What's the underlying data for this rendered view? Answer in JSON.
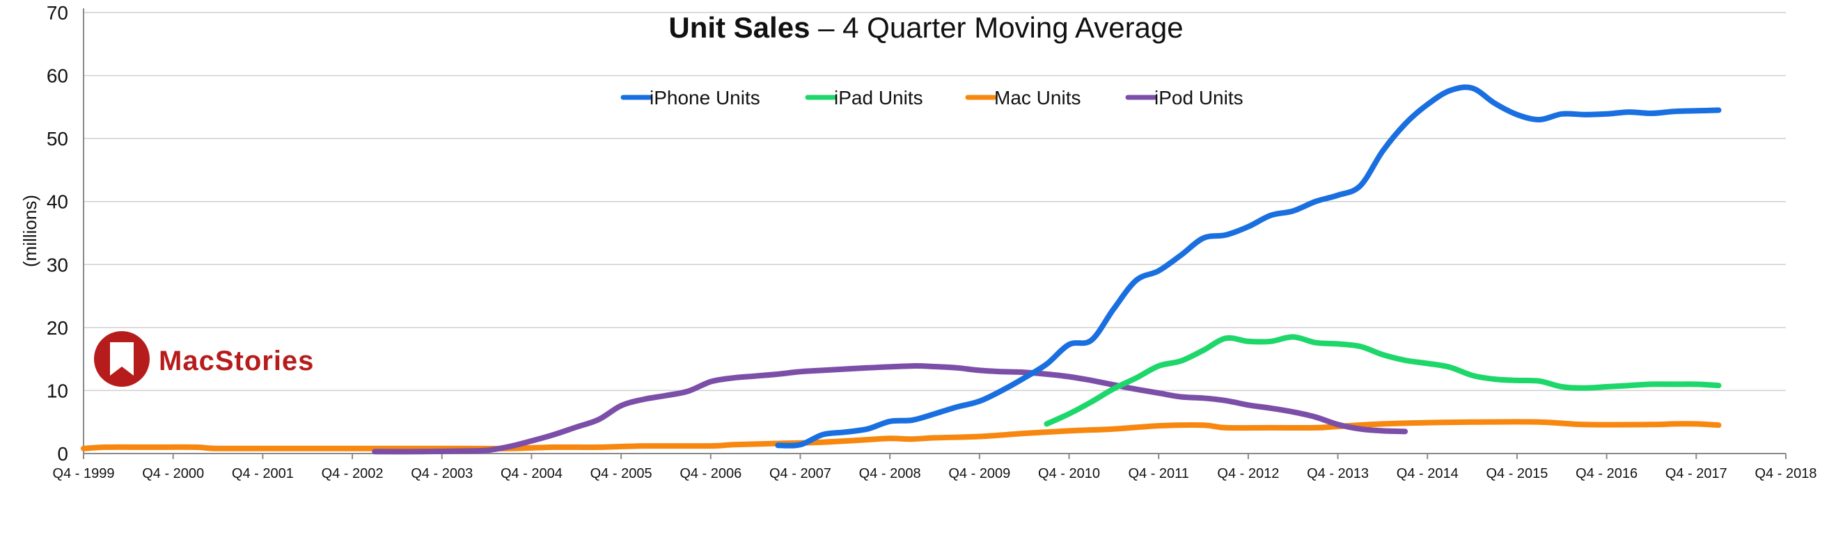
{
  "chart_data": {
    "type": "line",
    "title_bold": "Unit Sales",
    "title_rest": " – 4 Quarter Moving Average",
    "ylabel": "(millions)",
    "ylim": [
      0,
      70
    ],
    "yticks": [
      "0",
      "10",
      "20",
      "30",
      "40",
      "50",
      "60",
      "70"
    ],
    "xlim": [
      1999.75,
      2018.75
    ],
    "x_tick_labels": [
      "Q4 - 1999",
      "Q4 - 2000",
      "Q4 - 2001",
      "Q4 - 2002",
      "Q4 - 2003",
      "Q4 - 2004",
      "Q4 - 2005",
      "Q4 - 2006",
      "Q4 - 2007",
      "Q4 - 2008",
      "Q4 - 2009",
      "Q4 - 2010",
      "Q4 - 2011",
      "Q4 - 2012",
      "Q4 - 2013",
      "Q4 - 2014",
      "Q4 - 2015",
      "Q4 - 2016",
      "Q4 - 2017",
      "Q4 - 2018"
    ],
    "grid": true,
    "legend_position": "top-center",
    "watermark": "MacStories",
    "series": [
      {
        "name": "iPhone Units",
        "color": "#1a6fe0",
        "points": [
          [
            2007.5,
            1.3
          ],
          [
            2007.75,
            1.4
          ],
          [
            2008.0,
            3.0
          ],
          [
            2008.25,
            3.4
          ],
          [
            2008.5,
            3.9
          ],
          [
            2008.75,
            5.1
          ],
          [
            2009.0,
            5.3
          ],
          [
            2009.25,
            6.3
          ],
          [
            2009.5,
            7.4
          ],
          [
            2009.75,
            8.3
          ],
          [
            2010.0,
            10.0
          ],
          [
            2010.25,
            12.0
          ],
          [
            2010.5,
            14.2
          ],
          [
            2010.75,
            17.3
          ],
          [
            2011.0,
            18.0
          ],
          [
            2011.25,
            23.0
          ],
          [
            2011.5,
            27.5
          ],
          [
            2011.75,
            29.0
          ],
          [
            2012.0,
            31.5
          ],
          [
            2012.25,
            34.2
          ],
          [
            2012.5,
            34.7
          ],
          [
            2012.75,
            36.0
          ],
          [
            2013.0,
            37.8
          ],
          [
            2013.25,
            38.5
          ],
          [
            2013.5,
            40.0
          ],
          [
            2013.75,
            41.0
          ],
          [
            2014.0,
            42.5
          ],
          [
            2014.25,
            48.0
          ],
          [
            2014.5,
            52.3
          ],
          [
            2014.75,
            55.4
          ],
          [
            2015.0,
            57.6
          ],
          [
            2015.25,
            58.0
          ],
          [
            2015.5,
            55.6
          ],
          [
            2015.75,
            53.8
          ],
          [
            2016.0,
            53.0
          ],
          [
            2016.25,
            53.9
          ],
          [
            2016.5,
            53.8
          ],
          [
            2016.75,
            53.9
          ],
          [
            2017.0,
            54.2
          ],
          [
            2017.25,
            54.0
          ],
          [
            2017.5,
            54.3
          ],
          [
            2017.75,
            54.4
          ],
          [
            2018.0,
            54.5
          ]
        ]
      },
      {
        "name": "iPad Units",
        "color": "#1ed76a",
        "points": [
          [
            2010.5,
            4.7
          ],
          [
            2010.75,
            6.3
          ],
          [
            2011.0,
            8.2
          ],
          [
            2011.25,
            10.3
          ],
          [
            2011.5,
            12.0
          ],
          [
            2011.75,
            13.9
          ],
          [
            2012.0,
            14.7
          ],
          [
            2012.25,
            16.4
          ],
          [
            2012.5,
            18.3
          ],
          [
            2012.75,
            17.8
          ],
          [
            2013.0,
            17.8
          ],
          [
            2013.25,
            18.5
          ],
          [
            2013.5,
            17.6
          ],
          [
            2013.75,
            17.4
          ],
          [
            2014.0,
            17.0
          ],
          [
            2014.25,
            15.7
          ],
          [
            2014.5,
            14.8
          ],
          [
            2014.75,
            14.3
          ],
          [
            2015.0,
            13.7
          ],
          [
            2015.25,
            12.4
          ],
          [
            2015.5,
            11.8
          ],
          [
            2015.75,
            11.6
          ],
          [
            2016.0,
            11.5
          ],
          [
            2016.25,
            10.6
          ],
          [
            2016.5,
            10.4
          ],
          [
            2016.75,
            10.6
          ],
          [
            2017.0,
            10.8
          ],
          [
            2017.25,
            11.0
          ],
          [
            2017.5,
            11.0
          ],
          [
            2017.75,
            11.0
          ],
          [
            2018.0,
            10.8
          ]
        ]
      },
      {
        "name": "Mac Units",
        "color": "#f7870f",
        "points": [
          [
            1999.75,
            0.8
          ],
          [
            2000.0,
            1.0
          ],
          [
            2000.5,
            1.0
          ],
          [
            2001.0,
            1.0
          ],
          [
            2001.25,
            0.8
          ],
          [
            2002.0,
            0.8
          ],
          [
            2003.0,
            0.8
          ],
          [
            2004.0,
            0.8
          ],
          [
            2004.5,
            0.8
          ],
          [
            2005.0,
            1.0
          ],
          [
            2005.5,
            1.0
          ],
          [
            2006.0,
            1.2
          ],
          [
            2006.75,
            1.2
          ],
          [
            2007.0,
            1.4
          ],
          [
            2007.5,
            1.6
          ],
          [
            2008.0,
            1.8
          ],
          [
            2008.5,
            2.2
          ],
          [
            2008.75,
            2.4
          ],
          [
            2009.0,
            2.3
          ],
          [
            2009.25,
            2.5
          ],
          [
            2009.75,
            2.7
          ],
          [
            2010.25,
            3.2
          ],
          [
            2010.75,
            3.6
          ],
          [
            2011.25,
            3.9
          ],
          [
            2011.75,
            4.4
          ],
          [
            2012.25,
            4.5
          ],
          [
            2012.5,
            4.1
          ],
          [
            2013.0,
            4.1
          ],
          [
            2013.5,
            4.1
          ],
          [
            2013.75,
            4.3
          ],
          [
            2014.25,
            4.7
          ],
          [
            2014.75,
            4.9
          ],
          [
            2015.25,
            5.0
          ],
          [
            2016.0,
            5.0
          ],
          [
            2016.5,
            4.6
          ],
          [
            2017.25,
            4.6
          ],
          [
            2017.5,
            4.7
          ],
          [
            2017.75,
            4.7
          ],
          [
            2018.0,
            4.5
          ]
        ]
      },
      {
        "name": "iPod Units",
        "color": "#7b4fa8",
        "points": [
          [
            2003.0,
            0.3
          ],
          [
            2003.5,
            0.3
          ],
          [
            2004.0,
            0.4
          ],
          [
            2004.25,
            0.5
          ],
          [
            2004.5,
            1.1
          ],
          [
            2004.75,
            2.0
          ],
          [
            2005.0,
            3.0
          ],
          [
            2005.25,
            4.2
          ],
          [
            2005.5,
            5.4
          ],
          [
            2005.75,
            7.6
          ],
          [
            2006.0,
            8.6
          ],
          [
            2006.25,
            9.2
          ],
          [
            2006.5,
            9.9
          ],
          [
            2006.75,
            11.4
          ],
          [
            2007.0,
            12.0
          ],
          [
            2007.25,
            12.3
          ],
          [
            2007.5,
            12.6
          ],
          [
            2007.75,
            13.0
          ],
          [
            2008.0,
            13.2
          ],
          [
            2008.5,
            13.6
          ],
          [
            2009.0,
            13.9
          ],
          [
            2009.25,
            13.8
          ],
          [
            2009.5,
            13.6
          ],
          [
            2009.75,
            13.2
          ],
          [
            2010.0,
            13.0
          ],
          [
            2010.25,
            12.9
          ],
          [
            2010.5,
            12.6
          ],
          [
            2010.75,
            12.2
          ],
          [
            2011.0,
            11.6
          ],
          [
            2011.25,
            10.9
          ],
          [
            2011.5,
            10.2
          ],
          [
            2011.75,
            9.6
          ],
          [
            2012.0,
            9.0
          ],
          [
            2012.25,
            8.8
          ],
          [
            2012.5,
            8.4
          ],
          [
            2012.75,
            7.7
          ],
          [
            2013.0,
            7.2
          ],
          [
            2013.25,
            6.6
          ],
          [
            2013.5,
            5.8
          ],
          [
            2013.75,
            4.6
          ],
          [
            2014.0,
            3.9
          ],
          [
            2014.25,
            3.6
          ],
          [
            2014.5,
            3.5
          ]
        ]
      }
    ]
  }
}
